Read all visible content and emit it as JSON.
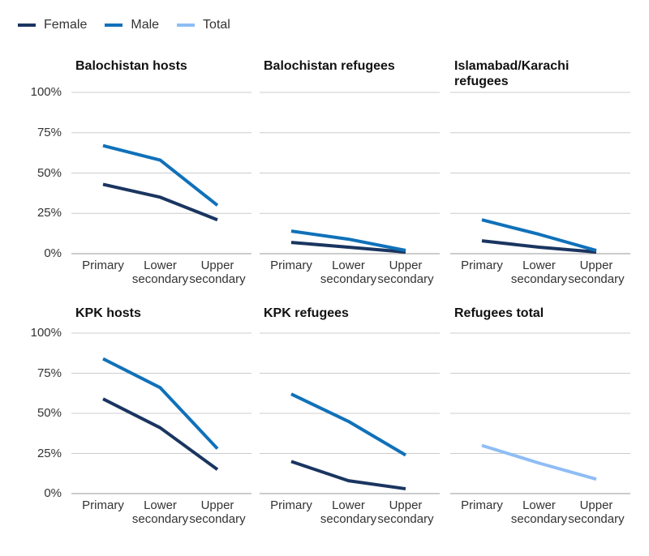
{
  "chart_data": [
    {
      "type": "line",
      "title": "Balochistan hosts",
      "categories": [
        "Primary",
        "Lower secondary",
        "Upper secondary"
      ],
      "series": [
        {
          "name": "Female",
          "color": "#1a3560",
          "values": [
            43,
            35,
            21
          ]
        },
        {
          "name": "Male",
          "color": "#1071b9",
          "values": [
            67,
            58,
            30
          ]
        }
      ],
      "ylim": [
        0,
        100
      ],
      "yticks": [
        {
          "value": 0,
          "label": "0%"
        },
        {
          "value": 25,
          "label": "25%"
        },
        {
          "value": 50,
          "label": "50%"
        },
        {
          "value": 75,
          "label": "75%"
        },
        {
          "value": 100,
          "label": "100%"
        }
      ],
      "grid": true
    },
    {
      "type": "line",
      "title": "Balochistan refugees",
      "categories": [
        "Primary",
        "Lower secondary",
        "Upper secondary"
      ],
      "series": [
        {
          "name": "Female",
          "color": "#1a3560",
          "values": [
            7,
            4,
            1
          ]
        },
        {
          "name": "Male",
          "color": "#1071b9",
          "values": [
            14,
            9,
            2
          ]
        }
      ],
      "ylim": [
        0,
        100
      ],
      "yticks": [
        0,
        25,
        50,
        75,
        100
      ],
      "grid": true
    },
    {
      "type": "line",
      "title": "Islamabad/Karachi refugees",
      "categories": [
        "Primary",
        "Lower secondary",
        "Upper secondary"
      ],
      "series": [
        {
          "name": "Female",
          "color": "#1a3560",
          "values": [
            8,
            4,
            1
          ]
        },
        {
          "name": "Male",
          "color": "#1071b9",
          "values": [
            21,
            12,
            2
          ]
        }
      ],
      "ylim": [
        0,
        100
      ],
      "yticks": [
        0,
        25,
        50,
        75,
        100
      ],
      "grid": true
    },
    {
      "type": "line",
      "title": "KPK hosts",
      "categories": [
        "Primary",
        "Lower secondary",
        "Upper secondary"
      ],
      "series": [
        {
          "name": "Female",
          "color": "#1a3560",
          "values": [
            59,
            41,
            15
          ]
        },
        {
          "name": "Male",
          "color": "#1071b9",
          "values": [
            84,
            66,
            28
          ]
        }
      ],
      "ylim": [
        0,
        100
      ],
      "yticks": [
        {
          "value": 0,
          "label": "0%"
        },
        {
          "value": 25,
          "label": "25%"
        },
        {
          "value": 50,
          "label": "50%"
        },
        {
          "value": 75,
          "label": "75%"
        },
        {
          "value": 100,
          "label": "100%"
        }
      ],
      "grid": true
    },
    {
      "type": "line",
      "title": "KPK refugees",
      "categories": [
        "Primary",
        "Lower secondary",
        "Upper secondary"
      ],
      "series": [
        {
          "name": "Female",
          "color": "#1a3560",
          "values": [
            20,
            8,
            3
          ]
        },
        {
          "name": "Male",
          "color": "#1071b9",
          "values": [
            62,
            45,
            24
          ]
        }
      ],
      "ylim": [
        0,
        100
      ],
      "yticks": [
        0,
        25,
        50,
        75,
        100
      ],
      "grid": true
    },
    {
      "type": "line",
      "title": "Refugees total",
      "categories": [
        "Primary",
        "Lower secondary",
        "Upper secondary"
      ],
      "series": [
        {
          "name": "Total",
          "color": "#8fbdf5",
          "values": [
            30,
            19,
            9
          ]
        }
      ],
      "ylim": [
        0,
        100
      ],
      "yticks": [
        0,
        25,
        50,
        75,
        100
      ],
      "grid": true
    }
  ]
}
